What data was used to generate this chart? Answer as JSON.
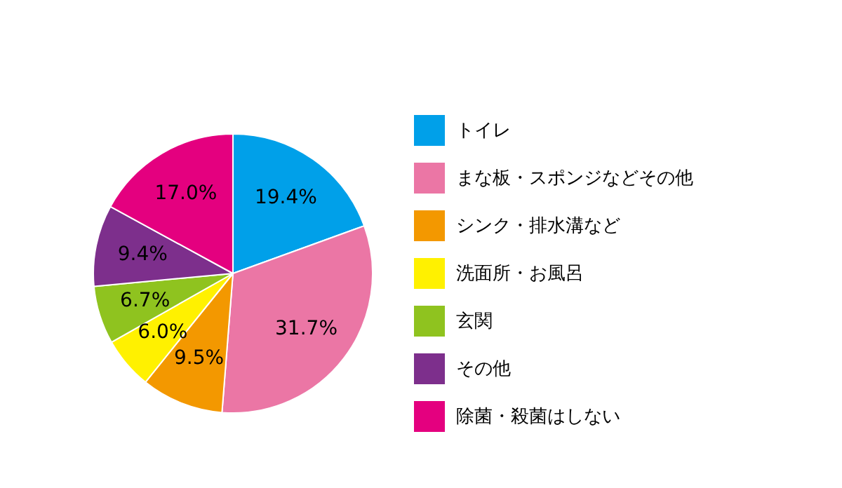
{
  "chart_data": {
    "type": "pie",
    "categories": [
      "トイレ",
      "まな板・スポンジなどその他",
      "シンク・排水溝など",
      "洗面所・お風呂",
      "玄関",
      "その他",
      "除菌・殺菌はしない"
    ],
    "values": [
      19.4,
      31.7,
      9.5,
      6.0,
      6.7,
      9.4,
      17.0
    ],
    "value_labels": [
      "19.4%",
      "31.7%",
      "9.5%",
      "6.0%",
      "6.7%",
      "9.4%",
      "17.0%"
    ],
    "colors": [
      "#00a0e9",
      "#eb76a5",
      "#f39800",
      "#fff100",
      "#8fc31f",
      "#7d2f8c",
      "#e4007f"
    ],
    "legend": "right"
  }
}
